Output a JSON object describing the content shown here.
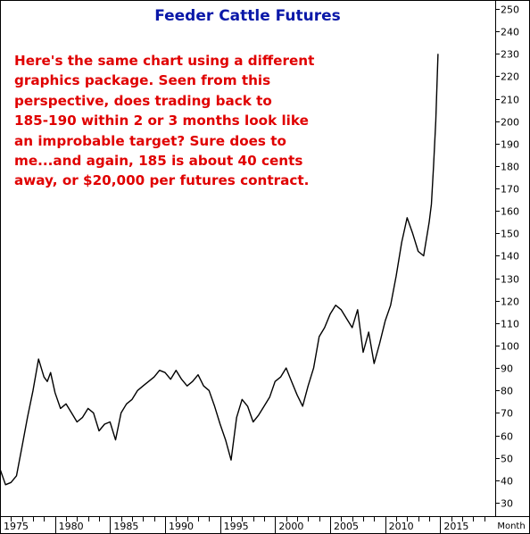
{
  "chart_data": {
    "type": "line",
    "title": "Feeder Cattle Futures",
    "annotation": [
      "Here's the same chart using a different",
      "graphics package. Seen from this",
      "perspective, does trading back to",
      "185-190 within 2 or 3 months look like",
      "an improbable target? Sure does to",
      "me...and again, 185 is about 40 cents",
      "away, or $20,000 per futures contract."
    ],
    "xlabel": "Month",
    "ylabel": "",
    "x_ticks": [
      "1975",
      "1980",
      "1985",
      "1990",
      "1995",
      "2000",
      "2005",
      "2010",
      "2015"
    ],
    "y_ticks": [
      30,
      40,
      50,
      60,
      70,
      80,
      90,
      100,
      110,
      120,
      130,
      140,
      150,
      160,
      170,
      180,
      190,
      200,
      210,
      220,
      230,
      240,
      250
    ],
    "xlim": [
      1975,
      2020
    ],
    "ylim": [
      24,
      254
    ],
    "grid": false,
    "legend": "none",
    "line_color": "#000000",
    "title_color": "#0a18a8",
    "annotation_color": "#e00000",
    "series": [
      {
        "x": [
          1975.0,
          1975.5,
          1976.0,
          1976.5,
          1977.0,
          1977.5,
          1978.0,
          1978.5,
          1979.0,
          1979.3,
          1979.6,
          1980.0,
          1980.5,
          1981.0,
          1981.5,
          1982.0,
          1982.5,
          1983.0,
          1983.5,
          1984.0,
          1984.5,
          1985.0,
          1985.5,
          1986.0,
          1986.5,
          1987.0,
          1987.5,
          1988.0,
          1988.5,
          1989.0,
          1989.5,
          1990.0,
          1990.5,
          1991.0,
          1991.5,
          1992.0,
          1992.5,
          1993.0,
          1993.5,
          1994.0,
          1994.5,
          1995.0,
          1995.5,
          1996.0,
          1996.5,
          1997.0,
          1997.5,
          1998.0,
          1998.5,
          1999.0,
          1999.5,
          2000.0,
          2000.5,
          2001.0,
          2001.5,
          2002.0,
          2002.5,
          2003.0,
          2003.5,
          2004.0,
          2004.5,
          2005.0,
          2005.5,
          2006.0,
          2006.5,
          2007.0,
          2007.5,
          2008.0,
          2008.5,
          2009.0,
          2009.5,
          2010.0,
          2010.5,
          2011.0,
          2011.5,
          2012.0,
          2012.5,
          2013.0,
          2013.5,
          2014.0,
          2014.2,
          2014.4,
          2014.6,
          2014.8
        ],
        "values": [
          45,
          38,
          39,
          42,
          55,
          68,
          80,
          94,
          86,
          84,
          88,
          79,
          72,
          74,
          70,
          66,
          68,
          72,
          70,
          62,
          65,
          66,
          58,
          70,
          74,
          76,
          80,
          82,
          84,
          86,
          89,
          88,
          85,
          89,
          85,
          82,
          84,
          87,
          82,
          80,
          73,
          65,
          58,
          49,
          68,
          76,
          73,
          66,
          69,
          73,
          77,
          84,
          86,
          90,
          84,
          78,
          73,
          82,
          90,
          104,
          108,
          114,
          118,
          116,
          112,
          108,
          116,
          97,
          106,
          92,
          101,
          111,
          118,
          131,
          146,
          157,
          150,
          142,
          140,
          155,
          163,
          180,
          200,
          230
        ]
      }
    ]
  }
}
